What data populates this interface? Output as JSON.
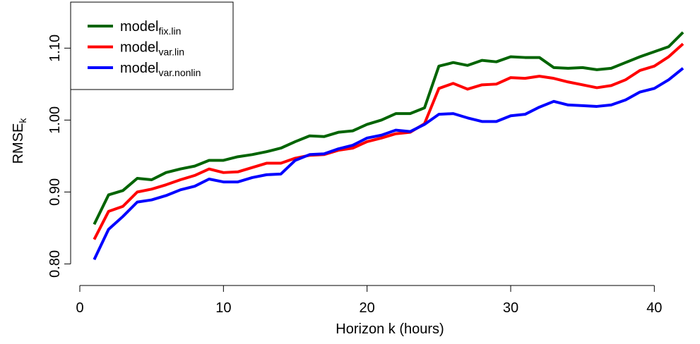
{
  "chart_data": {
    "type": "line",
    "xlabel": "Horizon k (hours)",
    "ylabel": "RMSE",
    "ylabel_subscript": "k",
    "x": [
      1,
      2,
      3,
      4,
      5,
      6,
      7,
      8,
      9,
      10,
      11,
      12,
      13,
      14,
      15,
      16,
      17,
      18,
      19,
      20,
      21,
      22,
      23,
      24,
      25,
      26,
      27,
      28,
      29,
      30,
      31,
      32,
      33,
      34,
      35,
      36,
      37,
      38,
      39,
      40,
      41,
      42
    ],
    "series": [
      {
        "name": "model",
        "subscript": "fix.lin",
        "color": "#006400",
        "values": [
          0.855,
          0.896,
          0.902,
          0.919,
          0.917,
          0.927,
          0.932,
          0.936,
          0.944,
          0.944,
          0.949,
          0.952,
          0.956,
          0.961,
          0.97,
          0.978,
          0.977,
          0.983,
          0.985,
          0.994,
          1.0,
          1.009,
          1.009,
          1.017,
          1.075,
          1.08,
          1.076,
          1.083,
          1.081,
          1.088,
          1.087,
          1.087,
          1.073,
          1.072,
          1.073,
          1.07,
          1.072,
          1.08,
          1.088,
          1.095,
          1.102,
          1.122
        ]
      },
      {
        "name": "model",
        "subscript": "var.lin",
        "color": "#ff0000",
        "values": [
          0.834,
          0.873,
          0.88,
          0.9,
          0.904,
          0.91,
          0.917,
          0.923,
          0.932,
          0.927,
          0.928,
          0.934,
          0.94,
          0.94,
          0.947,
          0.951,
          0.952,
          0.958,
          0.961,
          0.97,
          0.975,
          0.981,
          0.983,
          0.995,
          1.044,
          1.051,
          1.043,
          1.049,
          1.05,
          1.059,
          1.058,
          1.061,
          1.058,
          1.053,
          1.049,
          1.045,
          1.048,
          1.056,
          1.069,
          1.075,
          1.088,
          1.106
        ]
      },
      {
        "name": "model",
        "subscript": "var.nonlin",
        "color": "#0000ff",
        "values": [
          0.806,
          0.848,
          0.866,
          0.886,
          0.889,
          0.895,
          0.903,
          0.908,
          0.918,
          0.914,
          0.914,
          0.92,
          0.924,
          0.925,
          0.944,
          0.952,
          0.953,
          0.96,
          0.965,
          0.975,
          0.979,
          0.986,
          0.984,
          0.994,
          1.008,
          1.009,
          1.003,
          0.998,
          0.998,
          1.006,
          1.008,
          1.018,
          1.026,
          1.021,
          1.02,
          1.019,
          1.021,
          1.028,
          1.039,
          1.044,
          1.056,
          1.072
        ]
      }
    ],
    "xlim": [
      -0.64,
      42.64
    ],
    "ylim": [
      0.77,
      1.164
    ],
    "xticks": [
      0,
      10,
      20,
      30,
      40
    ],
    "yticks": [
      {
        "value": 0.8,
        "label": "0.80"
      },
      {
        "value": 0.9,
        "label": "0.90"
      },
      {
        "value": 1.0,
        "label": "1.00"
      },
      {
        "value": 1.1,
        "label": "1.10"
      }
    ],
    "legend": "top-left",
    "grid": false
  }
}
